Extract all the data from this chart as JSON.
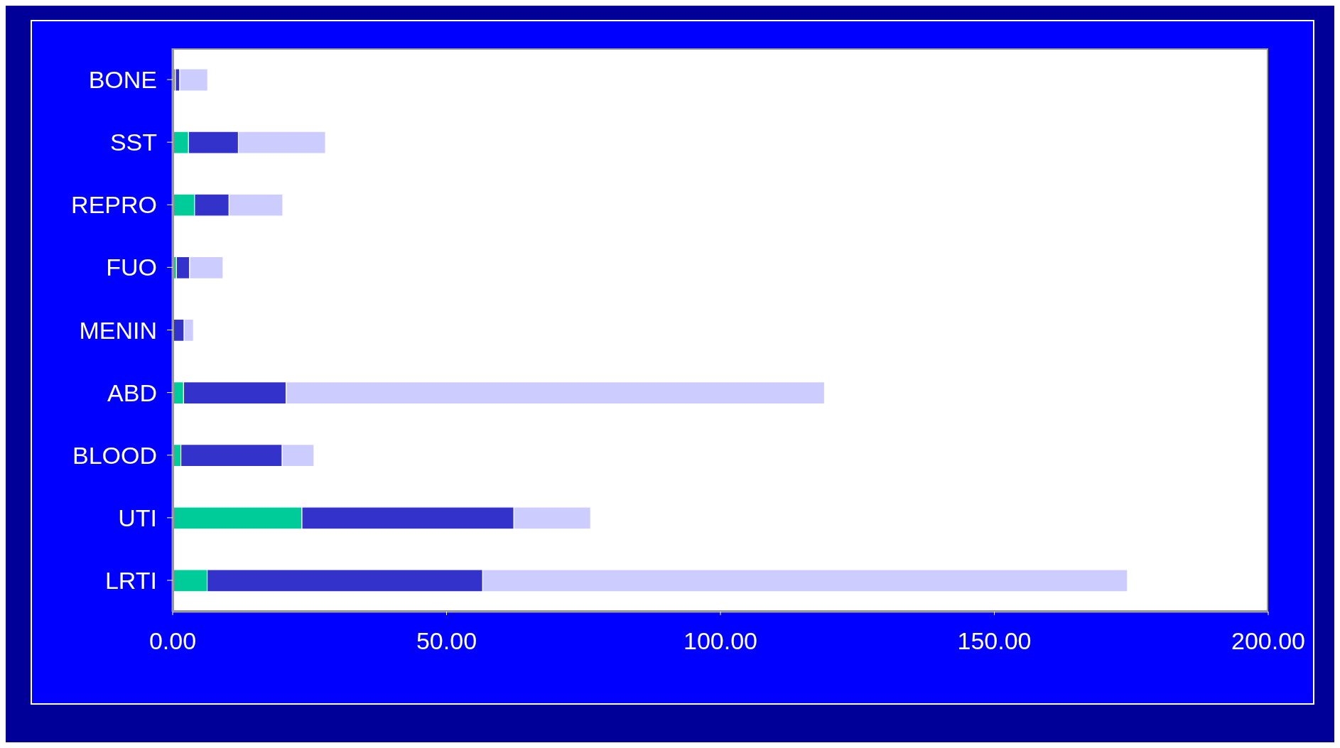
{
  "chart_data": {
    "type": "bar",
    "orientation": "horizontal",
    "stacked": true,
    "categories": [
      "BONE",
      "SST",
      "REPRO",
      "FUO",
      "MENIN",
      "ABD",
      "BLOOD",
      "UTI",
      "LRTI"
    ],
    "series": [
      {
        "color": "#00cc99",
        "values": [
          0.5,
          2.9,
          4.0,
          0.7,
          0,
          2.0,
          1.5,
          23.6,
          6.3
        ]
      },
      {
        "color": "#3333cc",
        "values": [
          0.8,
          9.1,
          6.3,
          2.4,
          2.1,
          18.7,
          18.5,
          38.7,
          50.3
        ]
      },
      {
        "color": "#ccccff",
        "values": [
          5.1,
          15.9,
          9.8,
          6.1,
          1.7,
          98.3,
          5.8,
          14.0,
          117.7
        ]
      }
    ],
    "xlim": [
      0,
      200
    ],
    "xticks": [
      {
        "value": 0,
        "label": "0.00"
      },
      {
        "value": 50,
        "label": "50.00"
      },
      {
        "value": 100,
        "label": "100.00"
      },
      {
        "value": 150,
        "label": "150.00"
      },
      {
        "value": 200,
        "label": "200.00"
      }
    ],
    "legend": false,
    "grid": false
  }
}
